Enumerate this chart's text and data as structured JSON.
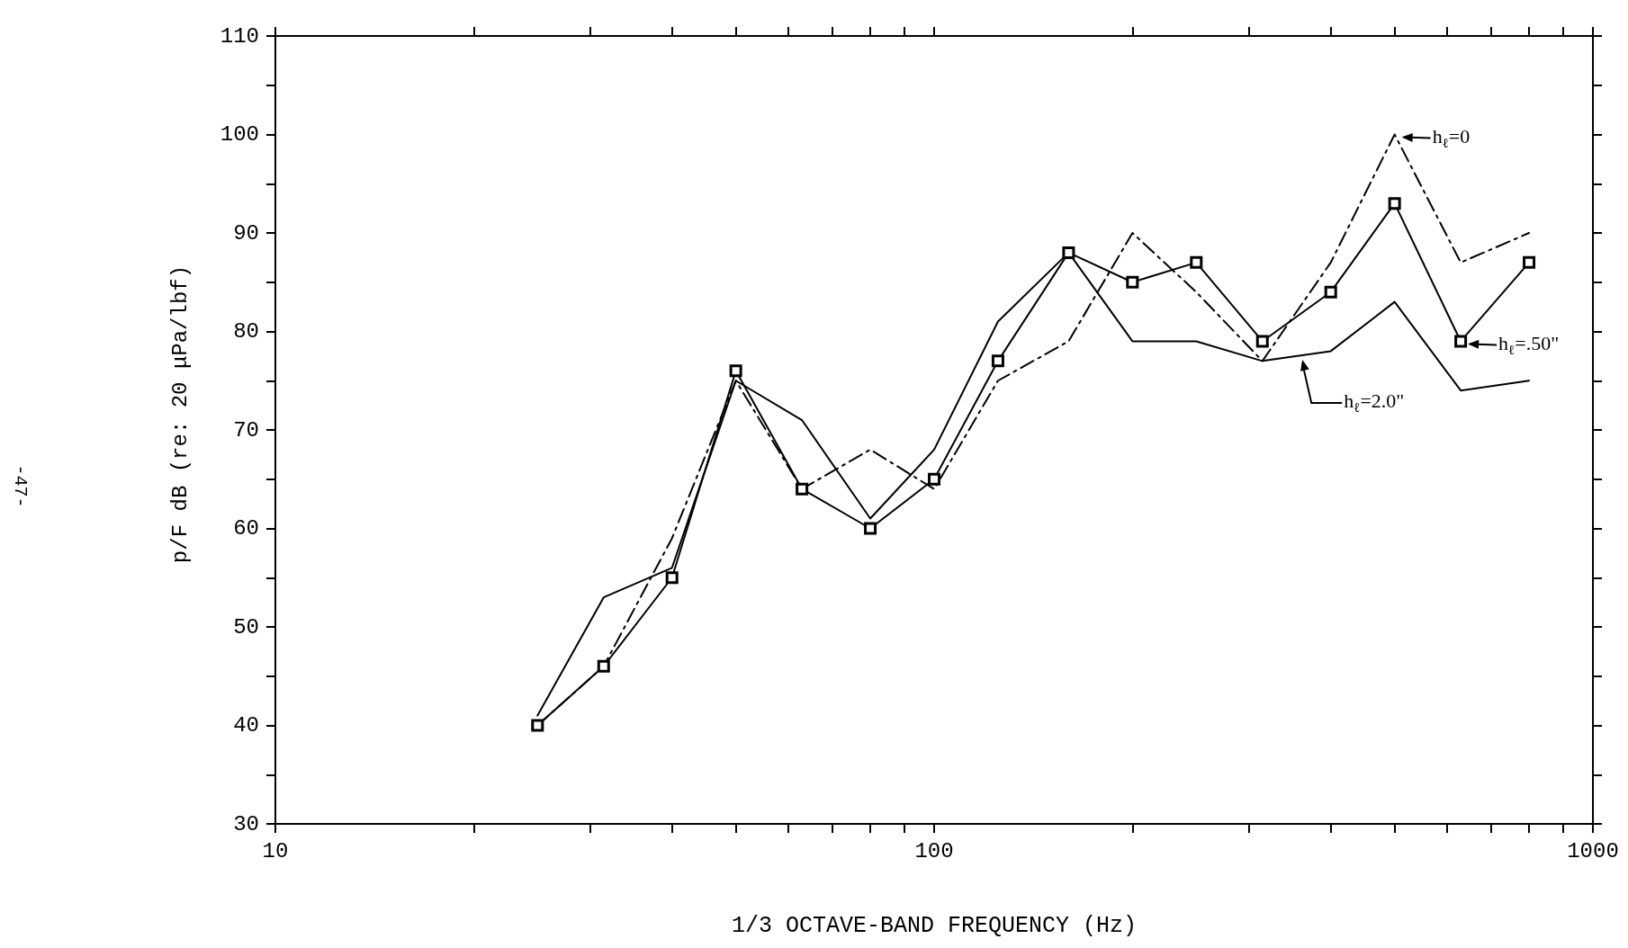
{
  "chart_data": {
    "type": "line",
    "xlabel": "1/3 OCTAVE-BAND FREQUENCY (Hz)",
    "ylabel": "p/F dB (re: 20 μPa/lbf)",
    "x": [
      25,
      31.5,
      40,
      50,
      63,
      80,
      100,
      125,
      160,
      200,
      250,
      315,
      400,
      500,
      630,
      800
    ],
    "series": [
      {
        "color": "#000000",
        "line_style": "dashed",
        "marker": "none",
        "values": [
          40,
          46,
          59,
          75,
          64,
          68,
          64,
          75,
          79,
          90,
          84,
          77,
          87,
          100,
          87,
          90
        ]
      },
      {
        "color": "#000000",
        "line_style": "solid",
        "marker": "square",
        "values": [
          40,
          46,
          55,
          76,
          64,
          60,
          65,
          77,
          88,
          85,
          87,
          79,
          84,
          93,
          79,
          87
        ]
      },
      {
        "color": "#000000",
        "line_style": "solid",
        "marker": "none",
        "values": [
          41,
          53,
          56,
          75,
          71,
          61,
          68,
          81,
          88,
          79,
          79,
          77,
          78,
          83,
          74,
          75
        ]
      }
    ],
    "log": "x",
    "xlim": [
      10,
      1000
    ],
    "xticks": [
      10,
      {
        "value": 20,
        "label": null
      },
      {
        "value": 30,
        "label": null
      },
      {
        "value": 40,
        "label": null
      },
      {
        "value": 50,
        "label": null
      },
      {
        "value": 60,
        "label": null
      },
      {
        "value": 70,
        "label": null
      },
      {
        "value": 80,
        "label": null
      },
      {
        "value": 90,
        "label": null
      },
      100,
      {
        "value": 200,
        "label": null
      },
      {
        "value": 300,
        "label": null
      },
      {
        "value": 400,
        "label": null
      },
      {
        "value": 500,
        "label": null
      },
      {
        "value": 600,
        "label": null
      },
      {
        "value": 700,
        "label": null
      },
      {
        "value": 800,
        "label": null
      },
      {
        "value": 900,
        "label": null
      },
      1000
    ],
    "ylim": [
      30,
      110
    ],
    "yticks": [
      30,
      {
        "value": 35,
        "label": null
      },
      40,
      {
        "value": 45,
        "label": null
      },
      50,
      {
        "value": 55,
        "label": null
      },
      60,
      {
        "value": 65,
        "label": null
      },
      70,
      {
        "value": 75,
        "label": null
      },
      80,
      {
        "value": 85,
        "label": null
      },
      90,
      {
        "value": 95,
        "label": null
      },
      100,
      {
        "value": 105,
        "label": null
      },
      110
    ],
    "grid": false,
    "legend": false,
    "annotations": [
      {
        "text": "h$_{ℓ}$=0",
        "x": 500,
        "y": 100
      },
      {
        "text": "h$_{ℓ}$=.50\"",
        "x": 630,
        "y": 79
      },
      {
        "text": "h$_{ℓ}$=2.0\"",
        "x": 360,
        "y": 77.5
      },
      "-47-"
    ]
  }
}
